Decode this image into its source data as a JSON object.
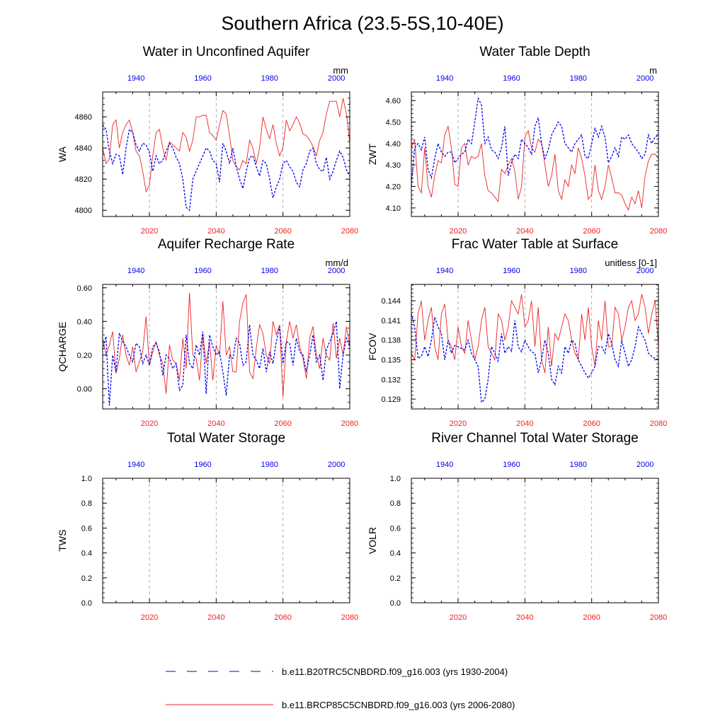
{
  "figure_title": "Southern Africa (23.5-5S,10-40E)",
  "legend": {
    "blue_label": "b.e11.B20TRC5CNBDRD.f09_g16.003 (yrs 1930-2004)",
    "red_label": "b.e11.BRCP85C5CNBDRD.f09_g16.003 (yrs 2006-2080)"
  },
  "colors": {
    "blue": "#0000ee",
    "red": "#ee2222",
    "axis": "#000000",
    "grid": "#999999"
  },
  "chart_data": [
    {
      "type": "line",
      "title": "Water in Unconfined Aquifer",
      "ylabel": "WA",
      "units": "mm",
      "ylim": [
        4796,
        4876
      ],
      "yticks": [
        4800,
        4820,
        4840,
        4860
      ],
      "x_bottom": {
        "range": [
          2006,
          2080
        ],
        "ticks": [
          2020,
          2040,
          2060,
          2080
        ]
      },
      "x_top": {
        "range": [
          1930,
          2004
        ],
        "ticks": [
          1940,
          1960,
          1980,
          2000
        ]
      },
      "series": [
        {
          "name": "b.e11.BRCP85C5CNBDRD.f09_g16.003 (yrs 2006-2080)",
          "color": "red",
          "values": [
            4840,
            4830,
            4833,
            4855,
            4858,
            4840,
            4850,
            4855,
            4858,
            4850,
            4838,
            4835,
            4825,
            4812,
            4816,
            4835,
            4850,
            4852,
            4840,
            4832,
            4844,
            4842,
            4840,
            4838,
            4850,
            4847,
            4838,
            4845,
            4860,
            4860,
            4861,
            4861,
            4850,
            4848,
            4845,
            4855,
            4864,
            4862,
            4848,
            4832,
            4828,
            4826,
            4832,
            4830,
            4845,
            4840,
            4830,
            4840,
            4860,
            4852,
            4846,
            4855,
            4843,
            4835,
            4840,
            4858,
            4851,
            4855,
            4860,
            4856,
            4849,
            4848,
            4845,
            4841,
            4835,
            4845,
            4850,
            4862,
            4870,
            4870,
            4870,
            4860,
            4872,
            4862,
            4843
          ]
        },
        {
          "name": "b.e11.B20TRC5CNBDRD.f09_g16.003 (yrs 1930-2004)",
          "color": "blue",
          "values": [
            4855,
            4852,
            4838,
            4830,
            4836,
            4835,
            4823,
            4840,
            4852,
            4850,
            4842,
            4838,
            4843,
            4842,
            4837,
            4825,
            4835,
            4830,
            4832,
            4838,
            4843,
            4840,
            4834,
            4830,
            4820,
            4802,
            4800,
            4820,
            4825,
            4830,
            4835,
            4840,
            4838,
            4832,
            4830,
            4818,
            4843,
            4838,
            4830,
            4840,
            4828,
            4820,
            4814,
            4825,
            4834,
            4835,
            4828,
            4822,
            4832,
            4830,
            4820,
            4808,
            4815,
            4820,
            4830,
            4832,
            4828,
            4825,
            4818,
            4815,
            4826,
            4830,
            4838,
            4840,
            4830,
            4826,
            4825,
            4834,
            4820,
            4825,
            4832,
            4838,
            4834,
            4826,
            4822
          ]
        }
      ]
    },
    {
      "type": "line",
      "title": "Water Table Depth",
      "ylabel": "ZWT",
      "units": "m",
      "ylim": [
        4.06,
        4.64
      ],
      "yticks": [
        4.1,
        4.2,
        4.3,
        4.4,
        4.5,
        4.6
      ],
      "ytick_labels": [
        "4.10",
        "4.20",
        "4.30",
        "4.40",
        "4.50",
        "4.60"
      ],
      "x_bottom": {
        "range": [
          2006,
          2080
        ],
        "ticks": [
          2020,
          2040,
          2060,
          2080
        ]
      },
      "x_top": {
        "range": [
          1930,
          2004
        ],
        "ticks": [
          1940,
          1960,
          1980,
          2000
        ]
      },
      "series": [
        {
          "name": "b.e11.BRCP85C5CNBDRD.f09_g16.003 (yrs 2006-2080)",
          "color": "red",
          "values": [
            4.38,
            4.42,
            4.2,
            4.17,
            4.38,
            4.2,
            4.15,
            4.25,
            4.32,
            4.31,
            4.44,
            4.48,
            4.38,
            4.21,
            4.2,
            4.38,
            4.4,
            4.3,
            4.34,
            4.33,
            4.34,
            4.4,
            4.25,
            4.18,
            4.17,
            4.15,
            4.13,
            4.28,
            4.26,
            4.3,
            4.33,
            4.27,
            4.14,
            4.2,
            4.43,
            4.46,
            4.38,
            4.36,
            4.42,
            4.4,
            4.3,
            4.2,
            4.25,
            4.35,
            4.18,
            4.14,
            4.23,
            4.2,
            4.3,
            4.26,
            4.38,
            4.33,
            4.25,
            4.14,
            4.16,
            4.3,
            4.18,
            4.14,
            4.2,
            4.3,
            4.24,
            4.17,
            4.17,
            4.16,
            4.12,
            4.09,
            4.15,
            4.12,
            4.18,
            4.1,
            4.25,
            4.32,
            4.35,
            4.35,
            4.33
          ]
        },
        {
          "name": "b.e11.B20TRC5CNBDRD.f09_g16.003 (yrs 1930-2004)",
          "color": "blue",
          "values": [
            4.2,
            4.38,
            4.4,
            4.37,
            4.43,
            4.28,
            4.24,
            4.33,
            4.4,
            4.36,
            4.34,
            4.36,
            4.36,
            4.31,
            4.33,
            4.35,
            4.36,
            4.42,
            4.4,
            4.5,
            4.61,
            4.58,
            4.4,
            4.43,
            4.37,
            4.36,
            4.33,
            4.38,
            4.48,
            4.25,
            4.31,
            4.35,
            4.33,
            4.42,
            4.4,
            4.38,
            4.35,
            4.48,
            4.52,
            4.4,
            4.33,
            4.37,
            4.44,
            4.47,
            4.5,
            4.48,
            4.4,
            4.38,
            4.36,
            4.4,
            4.42,
            4.44,
            4.34,
            4.33,
            4.4,
            4.47,
            4.43,
            4.48,
            4.43,
            4.31,
            4.34,
            4.38,
            4.34,
            4.43,
            4.42,
            4.44,
            4.4,
            4.38,
            4.36,
            4.33,
            4.35,
            4.44,
            4.4,
            4.43,
            4.44
          ]
        }
      ]
    },
    {
      "type": "line",
      "title": "Aquifer Recharge Rate",
      "ylabel": "QCHARGE",
      "units": "mm/d",
      "ylim": [
        -0.12,
        0.62
      ],
      "yticks": [
        0.0,
        0.2,
        0.4,
        0.6
      ],
      "ytick_labels": [
        "0.00",
        "0.20",
        "0.40",
        "0.60"
      ],
      "x_bottom": {
        "range": [
          2006,
          2080
        ],
        "ticks": [
          2020,
          2040,
          2060,
          2080
        ]
      },
      "x_top": {
        "range": [
          1930,
          2004
        ],
        "ticks": [
          1940,
          1960,
          1980,
          2000
        ]
      },
      "series": [
        {
          "name": "b.e11.BRCP85C5CNBDRD.f09_g16.003 (yrs 2006-2080)",
          "color": "red",
          "values": [
            0.3,
            0.2,
            0.26,
            0.34,
            0.09,
            0.18,
            0.32,
            0.2,
            0.14,
            0.25,
            0.1,
            0.16,
            0.22,
            0.43,
            0.14,
            0.22,
            0.28,
            0.2,
            0.15,
            -0.03,
            0.26,
            0.17,
            0.15,
            0.05,
            0.3,
            0.12,
            0.57,
            0.2,
            0.18,
            0.05,
            0.32,
            0.15,
            0.28,
            0.05,
            0.26,
            0.2,
            0.52,
            0.2,
            0.25,
            0.1,
            0.1,
            0.4,
            0.51,
            0.56,
            0.1,
            0.06,
            0.24,
            0.38,
            0.33,
            0.2,
            0.15,
            0.4,
            0.32,
            0.38,
            -0.05,
            0.28,
            0.4,
            0.3,
            0.38,
            0.25,
            0.18,
            0.06,
            0.3,
            0.37,
            0.2,
            0.12,
            0.3,
            0.2,
            0.17,
            0.39,
            0.18,
            0.3,
            0.2,
            0.37,
            0.25
          ]
        },
        {
          "name": "b.e11.B20TRC5CNBDRD.f09_g16.003 (yrs 1930-2004)",
          "color": "blue",
          "values": [
            0.23,
            0.31,
            -0.1,
            0.2,
            0.1,
            0.33,
            0.28,
            0.25,
            0.2,
            0.16,
            0.27,
            0.25,
            0.15,
            0.2,
            0.14,
            0.25,
            0.27,
            0.22,
            0.08,
            0.2,
            0.18,
            0.12,
            0.15,
            -0.01,
            0.02,
            0.32,
            0.15,
            0.12,
            0.26,
            0.2,
            0.34,
            -0.03,
            0.32,
            0.25,
            0.2,
            0.22,
            0.1,
            -0.04,
            0.2,
            0.18,
            0.3,
            0.27,
            0.14,
            0.16,
            0.38,
            0.2,
            0.17,
            0.12,
            0.24,
            0.1,
            0.22,
            0.15,
            0.28,
            0.37,
            0.15,
            0.28,
            0.27,
            0.14,
            0.3,
            0.22,
            0.2,
            0.1,
            0.2,
            0.32,
            0.16,
            0.2,
            0.05,
            0.23,
            0.28,
            0.33,
            0.4,
            0.0,
            0.2,
            0.3,
            0.25
          ]
        }
      ]
    },
    {
      "type": "line",
      "title": "Frac Water Table at Surface",
      "ylabel": "FCOV",
      "units": "unitless [0-1]",
      "ylim": [
        0.1275,
        0.1465
      ],
      "yticks": [
        0.129,
        0.132,
        0.135,
        0.138,
        0.141,
        0.144
      ],
      "ytick_labels": [
        "0.129",
        "0.132",
        "0.135",
        "0.138",
        "0.141",
        "0.144"
      ],
      "x_bottom": {
        "range": [
          2006,
          2080
        ],
        "ticks": [
          2020,
          2040,
          2060,
          2080
        ]
      },
      "x_top": {
        "range": [
          1930,
          2004
        ],
        "ticks": [
          1940,
          1960,
          1980,
          2000
        ]
      },
      "series": [
        {
          "name": "b.e11.BRCP85C5CNBDRD.f09_g16.003 (yrs 2006-2080)",
          "color": "red",
          "values": [
            0.136,
            0.135,
            0.142,
            0.144,
            0.138,
            0.141,
            0.143,
            0.137,
            0.135,
            0.142,
            0.1435,
            0.138,
            0.137,
            0.135,
            0.14,
            0.137,
            0.136,
            0.141,
            0.138,
            0.135,
            0.137,
            0.141,
            0.143,
            0.137,
            0.136,
            0.135,
            0.142,
            0.141,
            0.138,
            0.14,
            0.144,
            0.143,
            0.142,
            0.145,
            0.14,
            0.141,
            0.144,
            0.137,
            0.143,
            0.135,
            0.133,
            0.14,
            0.134,
            0.139,
            0.138,
            0.14,
            0.142,
            0.141,
            0.138,
            0.136,
            0.135,
            0.142,
            0.138,
            0.143,
            0.137,
            0.134,
            0.141,
            0.138,
            0.144,
            0.137,
            0.137,
            0.143,
            0.142,
            0.138,
            0.14,
            0.143,
            0.144,
            0.141,
            0.142,
            0.145,
            0.143,
            0.139,
            0.142,
            0.144,
            0.137
          ]
        },
        {
          "name": "b.e11.B20TRC5CNBDRD.f09_g16.003 (yrs 1930-2004)",
          "color": "blue",
          "values": [
            0.142,
            0.14,
            0.1352,
            0.1355,
            0.137,
            0.1355,
            0.138,
            0.1415,
            0.14,
            0.139,
            0.135,
            0.138,
            0.136,
            0.1372,
            0.137,
            0.1367,
            0.1365,
            0.138,
            0.136,
            0.135,
            0.134,
            0.1285,
            0.129,
            0.132,
            0.137,
            0.136,
            0.1348,
            0.139,
            0.136,
            0.137,
            0.1363,
            0.141,
            0.137,
            0.1362,
            0.138,
            0.137,
            0.1362,
            0.136,
            0.133,
            0.135,
            0.138,
            0.136,
            0.132,
            0.1312,
            0.134,
            0.133,
            0.137,
            0.136,
            0.138,
            0.1375,
            0.135,
            0.134,
            0.133,
            0.1322,
            0.133,
            0.134,
            0.137,
            0.137,
            0.136,
            0.139,
            0.1375,
            0.135,
            0.134,
            0.138,
            0.136,
            0.134,
            0.135,
            0.137,
            0.14,
            0.139,
            0.138,
            0.136,
            0.1355,
            0.1352,
            0.135
          ]
        }
      ]
    },
    {
      "type": "line",
      "title": "Total Water Storage",
      "ylabel": "TWS",
      "units": "",
      "ylim": [
        0,
        1
      ],
      "yticks": [
        0,
        0.2,
        0.4,
        0.6,
        0.8,
        1.0
      ],
      "ytick_labels": [
        "0.0",
        "0.2",
        "0.4",
        "0.6",
        "0.8",
        "1.0"
      ],
      "x_bottom": {
        "range": [
          2006,
          2080
        ],
        "ticks": [
          2020,
          2040,
          2060,
          2080
        ]
      },
      "x_top": {
        "range": [
          1930,
          2004
        ],
        "ticks": [
          1940,
          1960,
          1980,
          2000
        ]
      },
      "series": []
    },
    {
      "type": "line",
      "title": "River Channel Total Water Storage",
      "ylabel": "VOLR",
      "units": "",
      "ylim": [
        0,
        1
      ],
      "yticks": [
        0,
        0.2,
        0.4,
        0.6,
        0.8,
        1.0
      ],
      "ytick_labels": [
        "0.0",
        "0.2",
        "0.4",
        "0.6",
        "0.8",
        "1.0"
      ],
      "x_bottom": {
        "range": [
          2006,
          2080
        ],
        "ticks": [
          2020,
          2040,
          2060,
          2080
        ]
      },
      "x_top": {
        "range": [
          1930,
          2004
        ],
        "ticks": [
          1940,
          1960,
          1980,
          2000
        ]
      },
      "series": []
    }
  ]
}
